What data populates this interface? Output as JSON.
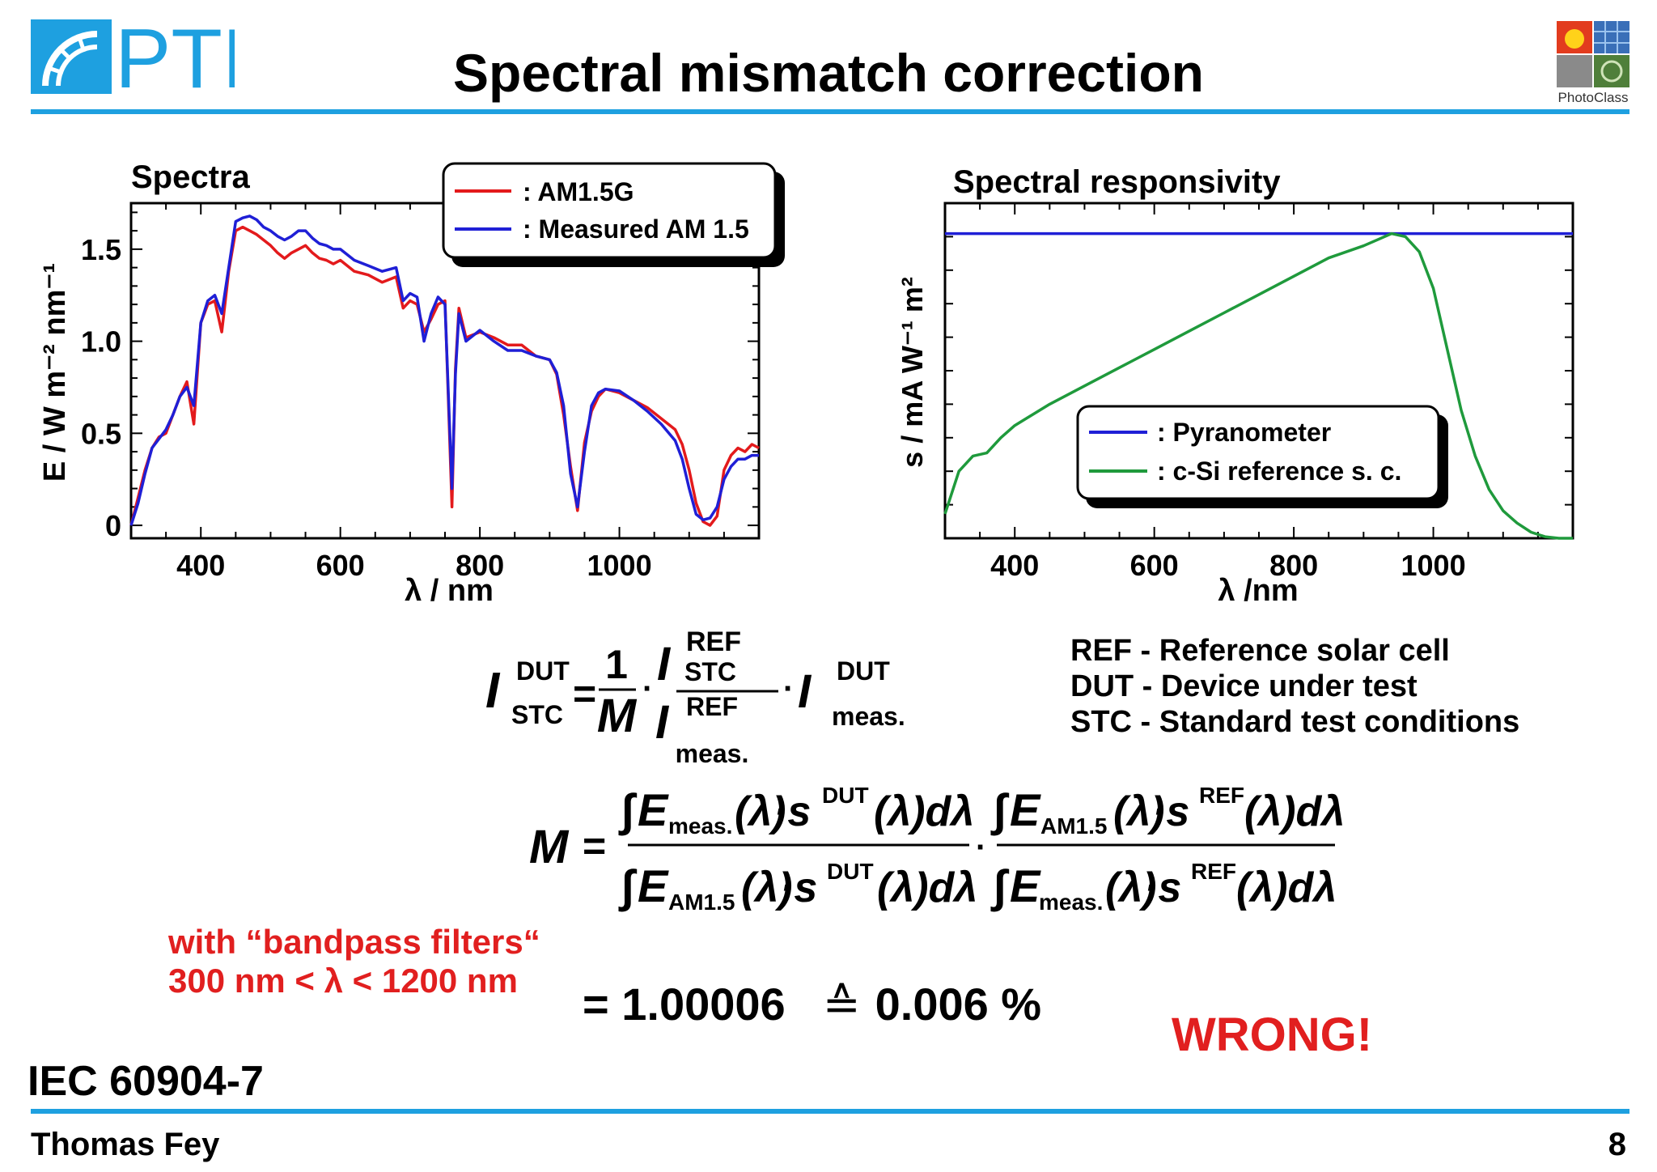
{
  "header": {
    "logo_text": "PTB",
    "title": "Spectral mismatch correction",
    "badge_label": "PhotoClass"
  },
  "footer": {
    "author": "Thomas Fey",
    "page_number": "8",
    "standard": "IEC 60904-7"
  },
  "abbreviations": [
    "REF - Reference solar cell",
    "DUT - Device under test",
    "STC - Standard test conditions"
  ],
  "formula1": {
    "lhs_sub": "STC",
    "lhs_sup": "DUT",
    "one": "1",
    "M": "M",
    "ref1": "REF",
    "stc": "STC",
    "ref2": "REF",
    "meas1": "meas.",
    "dut2": "DUT",
    "meas2": "meas."
  },
  "formula2": {
    "M": "M",
    "meas": "meas.",
    "am15": "AM1.5",
    "dut": "DUT",
    "ref": "REF",
    "dlambda": "(λ)dλ",
    "lam": "(λ)"
  },
  "note": {
    "line1": "with “bandpass filters“",
    "line2": "300 nm < λ < 1200 nm"
  },
  "result": {
    "value": "= 1.00006",
    "symbol": "≙",
    "percent": "0.006 %"
  },
  "verdict": "WRONG!",
  "colors": {
    "accent_rule": "#1ea0e0",
    "am15g": "#e31a1c",
    "measured": "#1f1fd6",
    "pyranometer": "#1f1fd6",
    "csi": "#1f9a3c",
    "alert": "#e11f1f"
  },
  "chart_data": [
    {
      "type": "line",
      "title": "Spectra",
      "xlabel": "λ / nm",
      "ylabel": "E / W m⁻² nm⁻¹",
      "xlim": [
        300,
        1200
      ],
      "ylim": [
        -0.07,
        1.75
      ],
      "x_ticks": [
        400,
        600,
        800,
        1000
      ],
      "y_ticks": [
        0,
        0.5,
        1.0,
        1.5
      ],
      "x_tick_labels": [
        "400",
        "600",
        "800",
        "1000"
      ],
      "y_tick_labels": [
        "0",
        "0.5",
        "1.0",
        "1.5"
      ],
      "legend_position": "top-right",
      "series": [
        {
          "name": ": AM1.5G",
          "color": "#e31a1c",
          "x": [
            300,
            310,
            320,
            330,
            340,
            350,
            360,
            370,
            380,
            390,
            400,
            410,
            420,
            430,
            440,
            450,
            460,
            470,
            480,
            490,
            500,
            510,
            520,
            530,
            540,
            550,
            560,
            570,
            580,
            590,
            600,
            620,
            640,
            660,
            680,
            690,
            700,
            710,
            720,
            730,
            740,
            750,
            760,
            765,
            770,
            780,
            800,
            820,
            840,
            860,
            880,
            900,
            910,
            920,
            930,
            940,
            950,
            960,
            970,
            980,
            1000,
            1020,
            1040,
            1060,
            1080,
            1090,
            1100,
            1110,
            1120,
            1130,
            1140,
            1150,
            1160,
            1170,
            1180,
            1190,
            1200
          ],
          "y": [
            0,
            0.15,
            0.3,
            0.42,
            0.48,
            0.5,
            0.6,
            0.7,
            0.78,
            0.55,
            1.1,
            1.2,
            1.22,
            1.05,
            1.38,
            1.6,
            1.62,
            1.6,
            1.58,
            1.55,
            1.52,
            1.48,
            1.45,
            1.48,
            1.5,
            1.52,
            1.48,
            1.45,
            1.44,
            1.42,
            1.44,
            1.38,
            1.36,
            1.32,
            1.35,
            1.18,
            1.22,
            1.2,
            1.05,
            1.12,
            1.2,
            1.22,
            0.1,
            0.85,
            1.18,
            1.02,
            1.05,
            1.02,
            0.98,
            0.98,
            0.92,
            0.9,
            0.82,
            0.6,
            0.32,
            0.08,
            0.45,
            0.62,
            0.7,
            0.74,
            0.72,
            0.68,
            0.64,
            0.58,
            0.52,
            0.44,
            0.3,
            0.12,
            0.02,
            0.0,
            0.05,
            0.3,
            0.38,
            0.42,
            0.4,
            0.44,
            0.42
          ]
        },
        {
          "name": ": Measured AM 1.5",
          "color": "#1f1fd6",
          "x": [
            300,
            310,
            320,
            330,
            340,
            350,
            360,
            370,
            380,
            390,
            400,
            410,
            420,
            430,
            440,
            450,
            460,
            470,
            480,
            490,
            500,
            510,
            520,
            530,
            540,
            550,
            560,
            570,
            580,
            590,
            600,
            620,
            640,
            660,
            680,
            690,
            700,
            710,
            720,
            730,
            740,
            750,
            760,
            765,
            770,
            780,
            800,
            820,
            840,
            860,
            880,
            900,
            910,
            920,
            930,
            940,
            950,
            960,
            970,
            980,
            1000,
            1020,
            1040,
            1060,
            1080,
            1090,
            1100,
            1110,
            1120,
            1130,
            1140,
            1150,
            1160,
            1170,
            1180,
            1190,
            1200
          ],
          "y": [
            0,
            0.12,
            0.28,
            0.42,
            0.47,
            0.52,
            0.6,
            0.7,
            0.75,
            0.65,
            1.1,
            1.22,
            1.25,
            1.15,
            1.4,
            1.65,
            1.67,
            1.68,
            1.66,
            1.62,
            1.6,
            1.57,
            1.55,
            1.57,
            1.6,
            1.6,
            1.56,
            1.53,
            1.52,
            1.5,
            1.5,
            1.44,
            1.41,
            1.38,
            1.4,
            1.22,
            1.26,
            1.24,
            1.0,
            1.15,
            1.24,
            1.2,
            0.2,
            0.82,
            1.15,
            1.0,
            1.06,
            1.0,
            0.95,
            0.95,
            0.92,
            0.9,
            0.83,
            0.65,
            0.28,
            0.1,
            0.4,
            0.65,
            0.72,
            0.74,
            0.73,
            0.68,
            0.62,
            0.55,
            0.46,
            0.36,
            0.2,
            0.06,
            0.03,
            0.04,
            0.1,
            0.25,
            0.32,
            0.36,
            0.36,
            0.38,
            0.38
          ]
        }
      ]
    },
    {
      "type": "line",
      "title": "Spectral responsivity",
      "xlabel": "λ /nm",
      "ylabel": "s / mA W⁻¹ m²",
      "xlim": [
        300,
        1200
      ],
      "ylim": [
        0,
        1.1
      ],
      "x_ticks": [
        400,
        600,
        800,
        1000
      ],
      "x_tick_labels": [
        "400",
        "600",
        "800",
        "1000"
      ],
      "y_tick_labels_shown": false,
      "legend_position": "bottom-center",
      "series": [
        {
          "name": ": Pyranometer",
          "color": "#1f1fd6",
          "x": [
            300,
            1200
          ],
          "y": [
            1.0,
            1.0
          ]
        },
        {
          "name": ": c-Si reference s. c.",
          "color": "#1f9a3c",
          "x": [
            300,
            320,
            340,
            360,
            380,
            400,
            450,
            500,
            550,
            600,
            650,
            700,
            750,
            800,
            850,
            900,
            920,
            940,
            960,
            980,
            1000,
            1020,
            1040,
            1060,
            1080,
            1100,
            1120,
            1140,
            1160,
            1180,
            1200
          ],
          "y": [
            0.08,
            0.22,
            0.27,
            0.28,
            0.33,
            0.37,
            0.44,
            0.5,
            0.56,
            0.62,
            0.68,
            0.74,
            0.8,
            0.86,
            0.92,
            0.96,
            0.98,
            1.0,
            0.99,
            0.94,
            0.82,
            0.62,
            0.42,
            0.27,
            0.16,
            0.09,
            0.05,
            0.02,
            0.005,
            0.0,
            0.0
          ]
        }
      ]
    }
  ]
}
